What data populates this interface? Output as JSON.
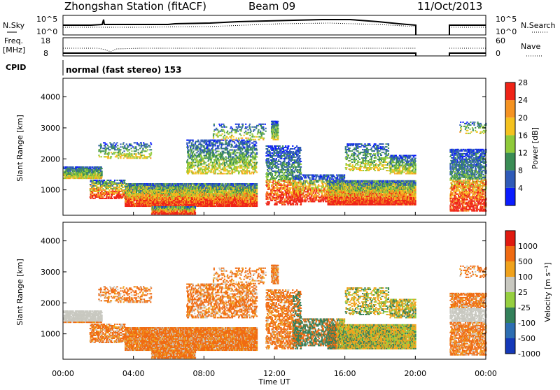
{
  "header": {
    "title": "Zhongshan Station (fitACF)",
    "beam": "Beam 09",
    "date": "11/Oct/2013"
  },
  "strip_panels": {
    "nsky_label": "N.Sky",
    "nsky_ticks": [
      "10^5",
      "10^0"
    ],
    "nsearch_label": "N.Search",
    "nsearch_ticks": [
      "10^5",
      "10^0"
    ],
    "freq_label_1": "Freq.",
    "freq_label_2": "[MHz]",
    "freq_ticks": [
      "18",
      "8"
    ],
    "nave_label": "Nave",
    "nave_ticks": [
      "60",
      "0"
    ],
    "cpid_label": "CPID",
    "cpid_value": "normal (fast stereo) 153"
  },
  "chart_data": [
    {
      "type": "heatmap",
      "panel": "power",
      "ylabel": "Slant Range [km]",
      "ylim": [
        180,
        4600
      ],
      "yticks": [
        "1000",
        "2000",
        "3000",
        "4000"
      ],
      "colorbar_label": "Power [dB]",
      "colorbar_ticks": [
        "4",
        "8",
        "12",
        "16",
        "20",
        "24",
        "28"
      ],
      "colorbar_colors": [
        "#0a1cff",
        "#2f5bb8",
        "#3a8c55",
        "#8fca3a",
        "#f4c21f",
        "#f59322",
        "#ef2417"
      ],
      "data_gap_hours": [
        20.0,
        21.75
      ]
    },
    {
      "type": "heatmap",
      "panel": "velocity",
      "ylabel": "Slant Range [km]",
      "ylim": [
        180,
        4600
      ],
      "yticks": [
        "1000",
        "2000",
        "3000",
        "4000"
      ],
      "xlabel": "Time UT",
      "xticks": [
        "00:00",
        "04:00",
        "08:00",
        "12:00",
        "16:00",
        "20:00",
        "00:00"
      ],
      "colorbar_label": "Velocity [m s⁻¹]",
      "colorbar_ticks": [
        "1000",
        "500",
        "100",
        "25",
        "-25",
        "-100",
        "-500",
        "-1000"
      ],
      "colorbar_colors": [
        "#1438b8",
        "#2d6eb2",
        "#33805a",
        "#96cf40",
        "#c8c8c0",
        "#f0a21c",
        "#f06b12",
        "#e01a10"
      ],
      "data_gap_hours": [
        20.0,
        21.75
      ]
    }
  ]
}
